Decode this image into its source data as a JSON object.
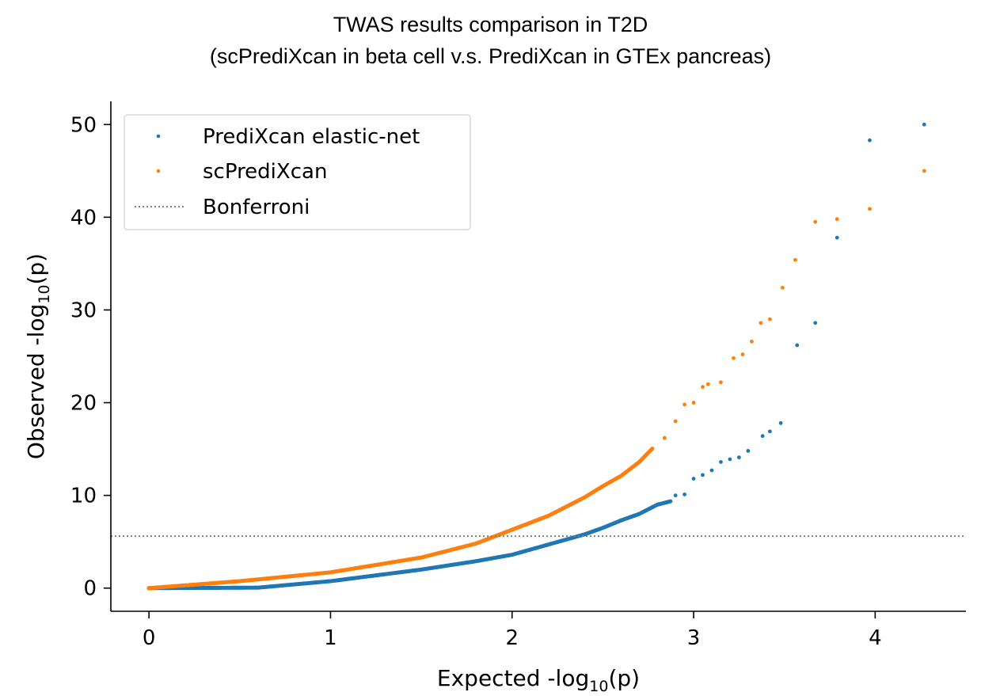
{
  "chart_data": {
    "type": "scatter",
    "title": "TWAS results comparison in T2D",
    "subtitle": "(scPrediXcan in beta cell v.s. PrediXcan in GTEx pancreas)",
    "xlabel": {
      "pre": "Expected -log",
      "sub": "10",
      "post": "(p)"
    },
    "ylabel": {
      "pre": "Observed -log",
      "sub": "10",
      "post": "(p)"
    },
    "xlim": [
      -0.21,
      4.5
    ],
    "ylim": [
      -2.5,
      52.5
    ],
    "xticks": [
      0,
      1,
      2,
      3,
      4
    ],
    "yticks": [
      0,
      10,
      20,
      30,
      40,
      50
    ],
    "legend_position": "top-left",
    "bonferroni": {
      "label": "Bonferroni",
      "y": 5.6,
      "color": "#808080"
    },
    "series": [
      {
        "name": "PrediXcan elastic-net",
        "color": "#1f77b4",
        "curve": [
          [
            0,
            0
          ],
          [
            0.6,
            0.05
          ],
          [
            1,
            0.75
          ],
          [
            1.5,
            2.0
          ],
          [
            1.8,
            2.9
          ],
          [
            2.0,
            3.6
          ],
          [
            2.2,
            4.7
          ],
          [
            2.4,
            5.8
          ],
          [
            2.5,
            6.5
          ],
          [
            2.6,
            7.3
          ],
          [
            2.7,
            8.0
          ],
          [
            2.8,
            9.0
          ],
          [
            2.88,
            9.4
          ]
        ],
        "points": [
          [
            2.9,
            10.0
          ],
          [
            2.95,
            10.1
          ],
          [
            3.0,
            11.8
          ],
          [
            3.05,
            12.2
          ],
          [
            3.1,
            12.7
          ],
          [
            3.15,
            13.6
          ],
          [
            3.2,
            13.9
          ],
          [
            3.25,
            14.1
          ],
          [
            3.3,
            14.8
          ],
          [
            3.38,
            16.4
          ],
          [
            3.42,
            16.9
          ],
          [
            3.48,
            17.8
          ],
          [
            3.57,
            26.2
          ],
          [
            3.67,
            28.6
          ],
          [
            3.79,
            37.8
          ],
          [
            3.97,
            48.3
          ],
          [
            4.27,
            50.0
          ]
        ]
      },
      {
        "name": "scPrediXcan",
        "color": "#ff7f0e",
        "curve": [
          [
            0,
            0
          ],
          [
            0.5,
            0.75
          ],
          [
            1,
            1.7
          ],
          [
            1.5,
            3.3
          ],
          [
            1.8,
            4.8
          ],
          [
            2.0,
            6.3
          ],
          [
            2.2,
            7.8
          ],
          [
            2.4,
            9.8
          ],
          [
            2.5,
            11.0
          ],
          [
            2.6,
            12.1
          ],
          [
            2.7,
            13.6
          ],
          [
            2.78,
            15.2
          ]
        ],
        "points": [
          [
            2.84,
            16.2
          ],
          [
            2.9,
            18.0
          ],
          [
            2.95,
            19.8
          ],
          [
            3.0,
            20.0
          ],
          [
            3.05,
            21.7
          ],
          [
            3.08,
            22.0
          ],
          [
            3.15,
            22.2
          ],
          [
            3.22,
            24.8
          ],
          [
            3.27,
            25.2
          ],
          [
            3.32,
            26.6
          ],
          [
            3.37,
            28.6
          ],
          [
            3.42,
            29.0
          ],
          [
            3.49,
            32.4
          ],
          [
            3.56,
            35.4
          ],
          [
            3.67,
            39.5
          ],
          [
            3.79,
            39.8
          ],
          [
            3.97,
            40.9
          ],
          [
            4.27,
            45.0
          ]
        ]
      }
    ]
  }
}
